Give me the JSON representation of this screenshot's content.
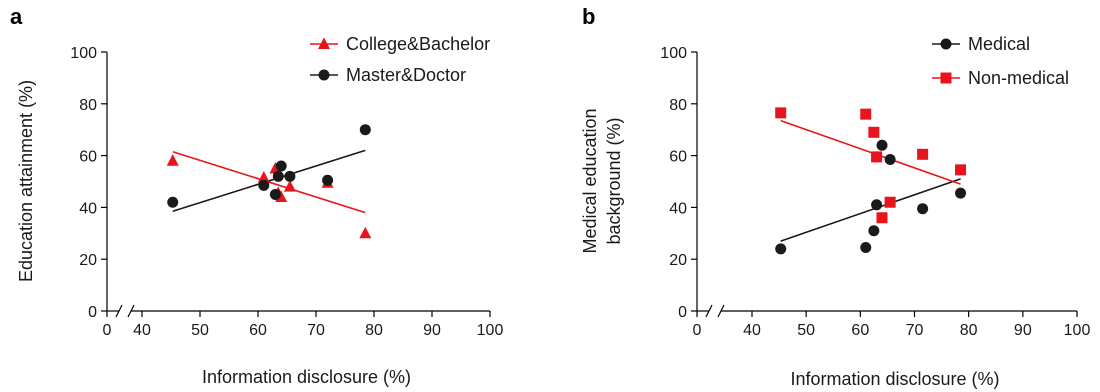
{
  "chart_data": [
    {
      "panel_label": "a",
      "type": "scatter",
      "xlabel": "Information disclosure (%)",
      "ylabel_lines": [
        "Education attainment (%)"
      ],
      "x_ticks": [
        "0",
        "40",
        "50",
        "60",
        "70",
        "80",
        "90",
        "100"
      ],
      "y_ticks": [
        "0",
        "20",
        "40",
        "60",
        "80",
        "100"
      ],
      "xlim": [
        35,
        100
      ],
      "ylim": [
        0,
        100
      ],
      "axis_break": true,
      "legend_position": "top-right",
      "series": [
        {
          "name": "College&Bachelor",
          "marker": "triangle",
          "color": "#e8141c",
          "points": [
            [
              45.3,
              58
            ],
            [
              61.0,
              51.5
            ],
            [
              63.0,
              55
            ],
            [
              63.5,
              45.5
            ],
            [
              64.0,
              44
            ],
            [
              65.5,
              48
            ],
            [
              72.0,
              49.5
            ],
            [
              78.5,
              30
            ]
          ],
          "fit_line": [
            [
              45.3,
              61.5
            ],
            [
              78.5,
              38
            ]
          ]
        },
        {
          "name": "Master&Doctor",
          "marker": "circle",
          "color": "#1a1a1a",
          "points": [
            [
              45.3,
              42
            ],
            [
              61.0,
              48.5
            ],
            [
              63.0,
              45
            ],
            [
              63.5,
              52
            ],
            [
              64.0,
              56
            ],
            [
              65.5,
              52
            ],
            [
              72.0,
              50.5
            ],
            [
              78.5,
              70
            ]
          ],
          "fit_line": [
            [
              45.3,
              38.5
            ],
            [
              78.5,
              62
            ]
          ]
        }
      ]
    },
    {
      "panel_label": "b",
      "type": "scatter",
      "xlabel": "Information disclosure (%)",
      "ylabel_lines": [
        "Medical education",
        "background (%)"
      ],
      "x_ticks": [
        "0",
        "40",
        "50",
        "60",
        "70",
        "80",
        "90",
        "100"
      ],
      "y_ticks": [
        "0",
        "20",
        "40",
        "60",
        "80",
        "100"
      ],
      "xlim": [
        35,
        100
      ],
      "ylim": [
        0,
        100
      ],
      "axis_break": true,
      "legend_position": "top-right",
      "series": [
        {
          "name": "Medical",
          "marker": "circle",
          "color": "#1a1a1a",
          "points": [
            [
              45.3,
              24
            ],
            [
              61.0,
              24.5
            ],
            [
              62.5,
              31
            ],
            [
              63.0,
              41
            ],
            [
              64.0,
              64
            ],
            [
              65.5,
              58.5
            ],
            [
              71.5,
              39.5
            ],
            [
              78.5,
              45.5
            ]
          ],
          "fit_line": [
            [
              45.3,
              27
            ],
            [
              78.5,
              51
            ]
          ]
        },
        {
          "name": "Non-medical",
          "marker": "square",
          "color": "#e8141c",
          "points": [
            [
              45.3,
              76.5
            ],
            [
              61.0,
              76
            ],
            [
              62.5,
              69
            ],
            [
              63.0,
              59.5
            ],
            [
              64.0,
              36
            ],
            [
              65.5,
              42
            ],
            [
              71.5,
              60.5
            ],
            [
              78.5,
              54.5
            ]
          ],
          "fit_line": [
            [
              45.3,
              73.5
            ],
            [
              78.5,
              49
            ]
          ]
        }
      ]
    }
  ]
}
